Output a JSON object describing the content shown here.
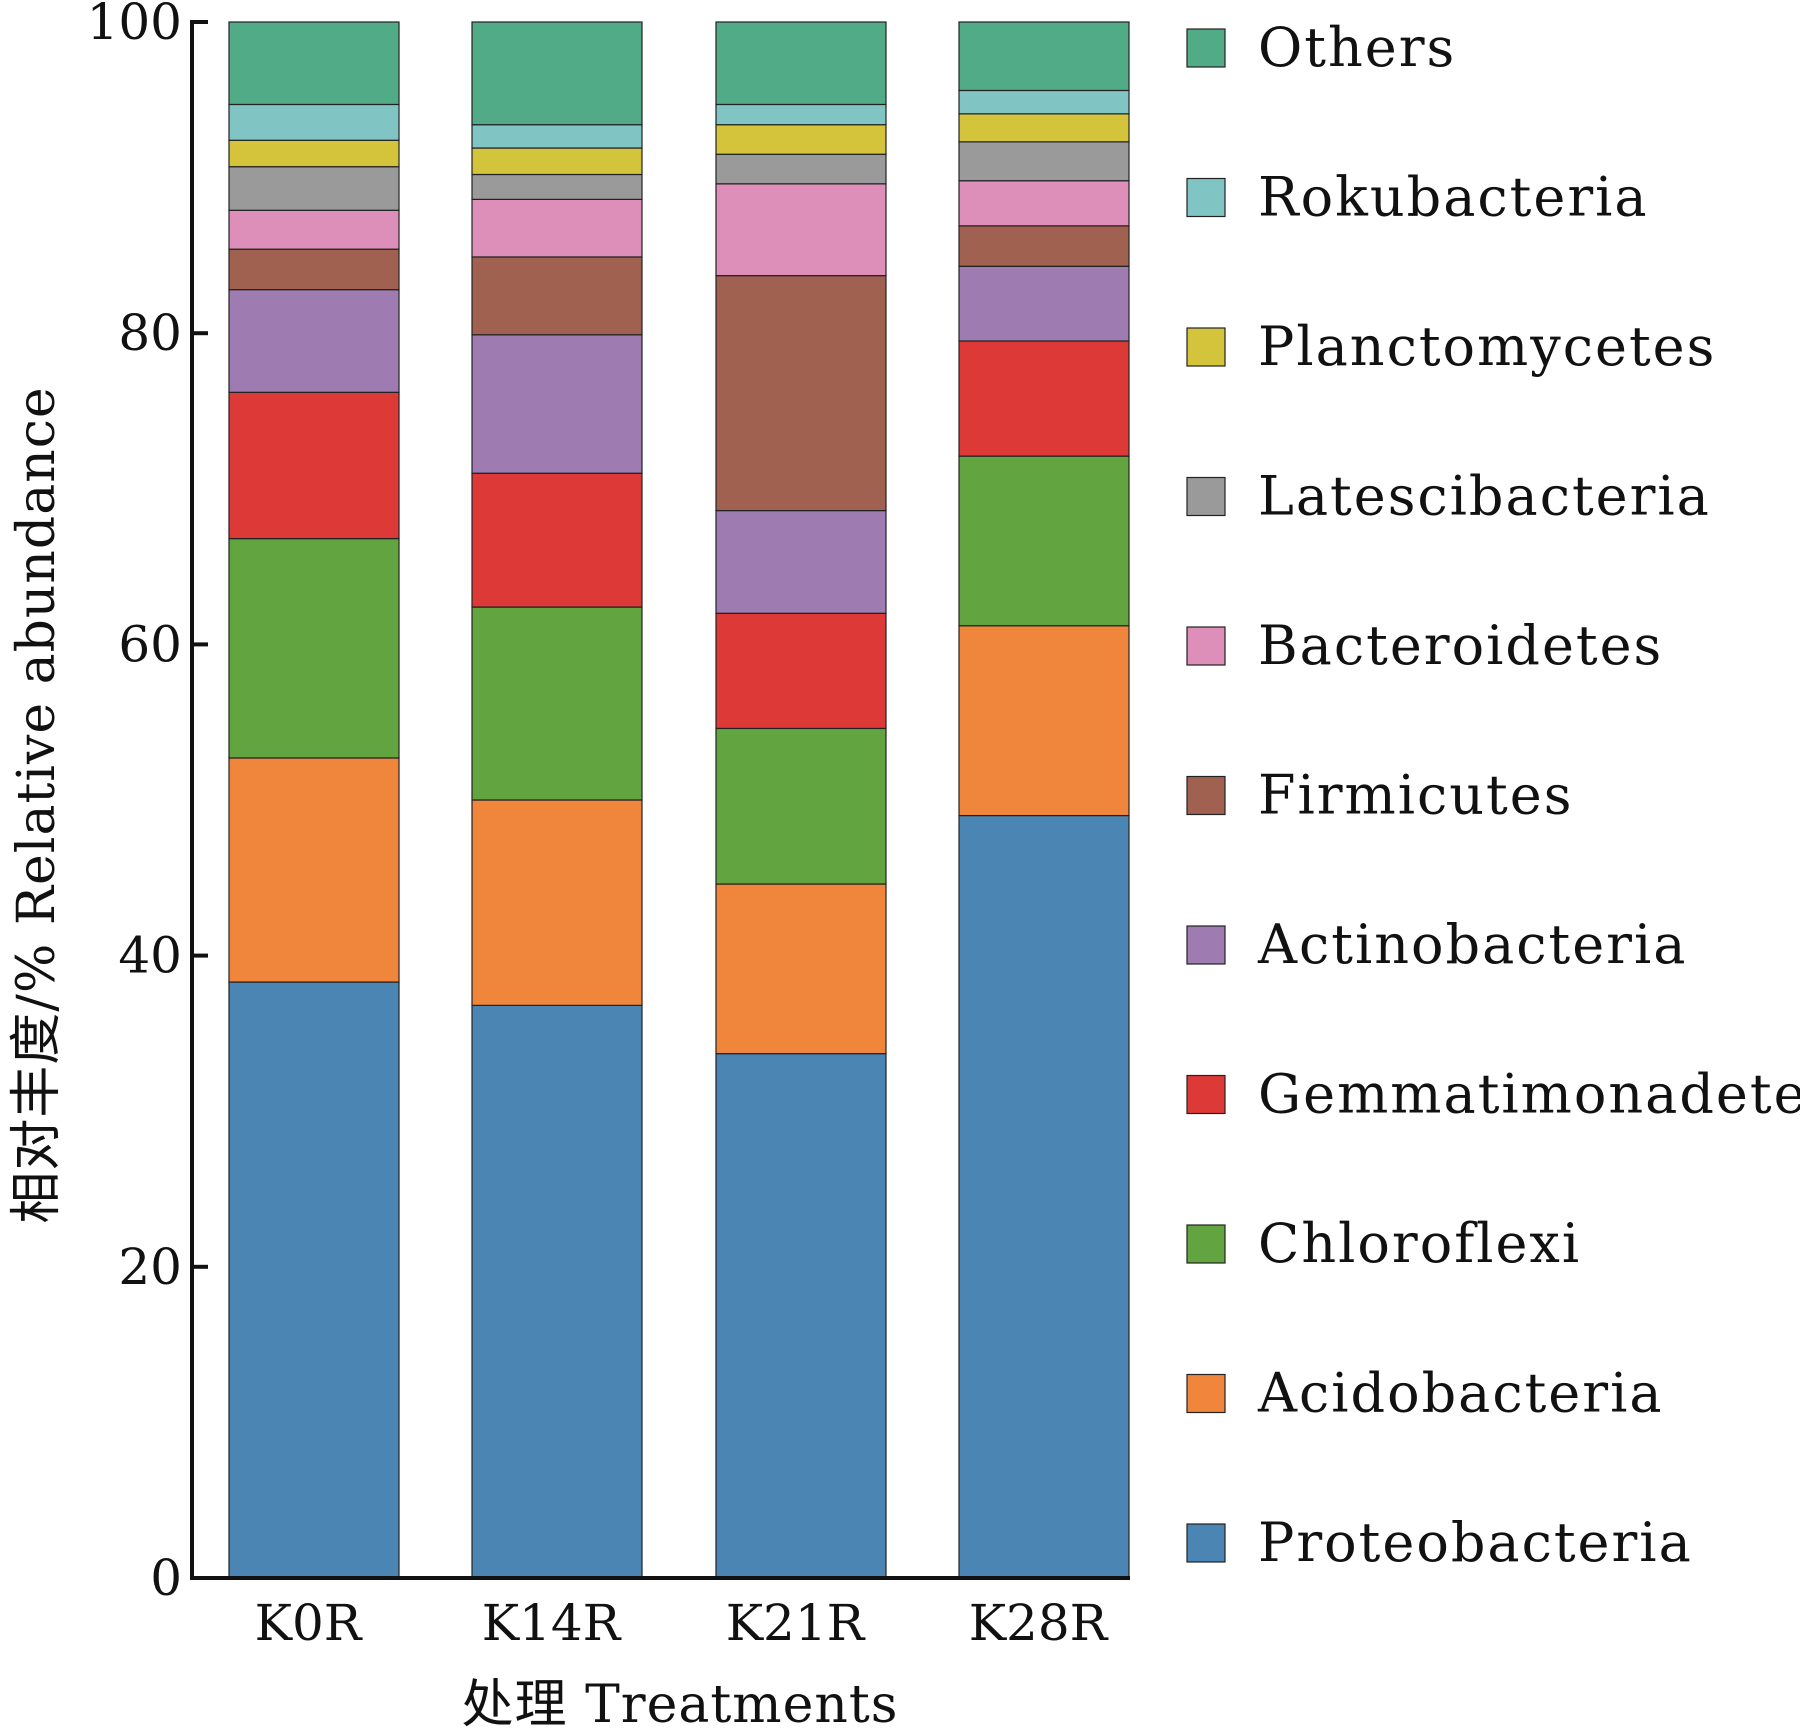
{
  "chart_data": {
    "type": "bar",
    "stacked": true,
    "xlabel": "处理 Treatments",
    "ylabel": "相对丰度/% Relative abundance",
    "ylim": [
      0,
      100
    ],
    "yticks": [
      0,
      20,
      40,
      60,
      80,
      100
    ],
    "grid": false,
    "legend_position": "right",
    "categories": [
      "K0R",
      "K14R",
      "K21R",
      "K28R"
    ],
    "series": [
      {
        "name": "Proteobacteria",
        "color": "#4a85b4",
        "values": [
          38.3,
          36.8,
          33.7,
          49.0
        ]
      },
      {
        "name": "Acidobacteria",
        "color": "#f0863c",
        "values": [
          14.4,
          13.2,
          10.9,
          12.2
        ]
      },
      {
        "name": "Chloroflexi",
        "color": "#62a43f",
        "values": [
          14.1,
          12.4,
          10.0,
          10.9
        ]
      },
      {
        "name": "Gemmatimonadetes",
        "color": "#dd3937",
        "values": [
          9.4,
          8.6,
          7.4,
          7.4
        ]
      },
      {
        "name": "Actinobacteria",
        "color": "#9e7bb0",
        "values": [
          6.6,
          8.9,
          6.6,
          4.8
        ]
      },
      {
        "name": "Firmicutes",
        "color": "#a06150",
        "values": [
          2.6,
          5.0,
          15.1,
          2.6
        ]
      },
      {
        "name": "Bacteroidetes",
        "color": "#dd8fba",
        "values": [
          2.5,
          3.7,
          5.9,
          2.9
        ]
      },
      {
        "name": "Latescibacteria",
        "color": "#9a9a9a",
        "values": [
          2.8,
          1.6,
          1.9,
          2.5
        ]
      },
      {
        "name": "Planctomycetes",
        "color": "#d3c43b",
        "values": [
          1.7,
          1.7,
          1.9,
          1.8
        ]
      },
      {
        "name": "Rokubacteria",
        "color": "#80c4c4",
        "values": [
          2.3,
          1.5,
          1.3,
          1.5
        ]
      },
      {
        "name": "Others",
        "color": "#51ab87",
        "values": [
          5.3,
          6.6,
          5.3,
          4.4
        ]
      }
    ]
  }
}
